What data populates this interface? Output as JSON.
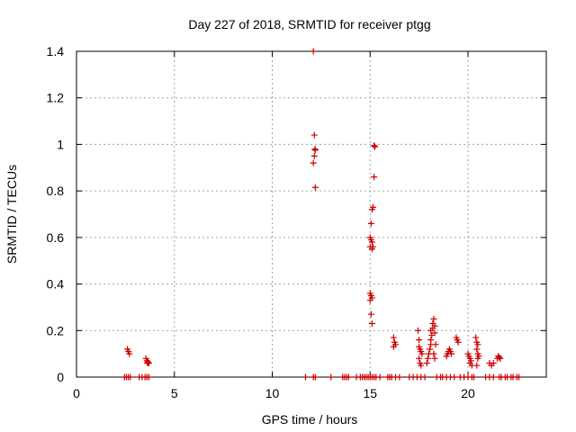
{
  "chart_data": {
    "type": "scatter",
    "title": "Day 227 of 2018, SRMTID for receiver ptgg",
    "xlabel": "GPS time / hours",
    "ylabel": "SRMTID / TECUs",
    "xlim": [
      0,
      24
    ],
    "ylim": [
      0,
      1.4
    ],
    "x_ticks": [
      0,
      5,
      10,
      15,
      20
    ],
    "x_tick_labels": [
      "0",
      "5",
      "10",
      "15",
      "20"
    ],
    "y_ticks": [
      0,
      0.2,
      0.4,
      0.6,
      0.8,
      1,
      1.2,
      1.4
    ],
    "y_tick_labels": [
      "0",
      "0.2",
      "0.4",
      "0.6",
      "0.8",
      "1",
      "1.2",
      "1.4"
    ],
    "grid": true,
    "marker": "+",
    "series": [
      {
        "name": "SRMTID",
        "color": "#cc0000",
        "points": [
          [
            2.45,
            0
          ],
          [
            2.55,
            0
          ],
          [
            2.65,
            0
          ],
          [
            2.75,
            0
          ],
          [
            2.6,
            0.12
          ],
          [
            2.65,
            0.11
          ],
          [
            2.7,
            0.1
          ],
          [
            3.2,
            0
          ],
          [
            3.35,
            0
          ],
          [
            3.5,
            0
          ],
          [
            3.6,
            0
          ],
          [
            3.7,
            0
          ],
          [
            3.55,
            0.08
          ],
          [
            3.6,
            0.07
          ],
          [
            3.62,
            0.06
          ],
          [
            3.65,
            0.065
          ],
          [
            3.7,
            0.06
          ],
          [
            11.7,
            0
          ],
          [
            12.1,
            0
          ],
          [
            12.2,
            0
          ],
          [
            12.1,
            1.4
          ],
          [
            12.15,
            1.04
          ],
          [
            12.18,
            0.98
          ],
          [
            12.2,
            0.975
          ],
          [
            12.15,
            0.95
          ],
          [
            12.1,
            0.92
          ],
          [
            12.2,
            0.815
          ],
          [
            13.0,
            0
          ],
          [
            13.6,
            0
          ],
          [
            13.7,
            0
          ],
          [
            13.8,
            0
          ],
          [
            13.9,
            0
          ],
          [
            14.3,
            0
          ],
          [
            14.5,
            0
          ],
          [
            14.6,
            0
          ],
          [
            14.7,
            0
          ],
          [
            14.8,
            0
          ],
          [
            14.9,
            0
          ],
          [
            15.0,
            0
          ],
          [
            15.1,
            0
          ],
          [
            15.2,
            0
          ],
          [
            15.3,
            0
          ],
          [
            15.5,
            0
          ],
          [
            15.2,
            0.995
          ],
          [
            15.25,
            0.99
          ],
          [
            15.2,
            0.86
          ],
          [
            15.15,
            0.73
          ],
          [
            15.1,
            0.72
          ],
          [
            15.05,
            0.66
          ],
          [
            15.0,
            0.6
          ],
          [
            15.05,
            0.59
          ],
          [
            15.1,
            0.58
          ],
          [
            15.0,
            0.56
          ],
          [
            15.15,
            0.56
          ],
          [
            15.1,
            0.55
          ],
          [
            15.0,
            0.36
          ],
          [
            15.05,
            0.35
          ],
          [
            15.1,
            0.34
          ],
          [
            15.0,
            0.33
          ],
          [
            15.05,
            0.27
          ],
          [
            15.1,
            0.23
          ],
          [
            15.9,
            0
          ],
          [
            16.0,
            0
          ],
          [
            16.1,
            0
          ],
          [
            16.3,
            0
          ],
          [
            16.5,
            0
          ],
          [
            16.2,
            0.17
          ],
          [
            16.25,
            0.15
          ],
          [
            16.3,
            0.14
          ],
          [
            16.2,
            0.13
          ],
          [
            17.0,
            0
          ],
          [
            17.2,
            0
          ],
          [
            17.4,
            0
          ],
          [
            17.6,
            0
          ],
          [
            17.8,
            0
          ],
          [
            17.45,
            0.2
          ],
          [
            17.5,
            0.16
          ],
          [
            17.5,
            0.13
          ],
          [
            17.55,
            0.12
          ],
          [
            17.6,
            0.11
          ],
          [
            17.65,
            0.1
          ],
          [
            17.5,
            0.08
          ],
          [
            17.55,
            0.06
          ],
          [
            17.6,
            0.05
          ],
          [
            17.9,
            0.06
          ],
          [
            17.95,
            0.08
          ],
          [
            18.0,
            0.1
          ],
          [
            18.05,
            0.12
          ],
          [
            18.1,
            0.14
          ],
          [
            18.1,
            0.16
          ],
          [
            18.15,
            0.18
          ],
          [
            18.1,
            0.2
          ],
          [
            18.2,
            0.21
          ],
          [
            18.2,
            0.23
          ],
          [
            18.25,
            0.25
          ],
          [
            18.3,
            0.22
          ],
          [
            18.3,
            0.19
          ],
          [
            18.35,
            0.14
          ],
          [
            18.25,
            0.1
          ],
          [
            18.3,
            0.08
          ],
          [
            18.4,
            0
          ],
          [
            18.6,
            0
          ],
          [
            18.7,
            0
          ],
          [
            18.9,
            0
          ],
          [
            19.1,
            0
          ],
          [
            19.3,
            0
          ],
          [
            18.9,
            0.09
          ],
          [
            18.95,
            0.1
          ],
          [
            19.0,
            0.11
          ],
          [
            19.05,
            0.12
          ],
          [
            19.1,
            0.11
          ],
          [
            19.15,
            0.1
          ],
          [
            19.4,
            0.17
          ],
          [
            19.45,
            0.16
          ],
          [
            19.5,
            0.15
          ],
          [
            19.6,
            0
          ],
          [
            19.8,
            0
          ],
          [
            20.0,
            0
          ],
          [
            20.2,
            0
          ],
          [
            20.3,
            0
          ],
          [
            20.0,
            0.1
          ],
          [
            20.05,
            0.09
          ],
          [
            20.1,
            0.08
          ],
          [
            20.15,
            0.07
          ],
          [
            20.1,
            0.06
          ],
          [
            20.2,
            0.05
          ],
          [
            20.4,
            0.17
          ],
          [
            20.45,
            0.15
          ],
          [
            20.5,
            0.14
          ],
          [
            20.45,
            0.12
          ],
          [
            20.5,
            0.1
          ],
          [
            20.55,
            0.09
          ],
          [
            20.5,
            0.08
          ],
          [
            20.45,
            0.05
          ],
          [
            20.9,
            0
          ],
          [
            21.1,
            0
          ],
          [
            21.3,
            0
          ],
          [
            21.6,
            0
          ],
          [
            21.7,
            0
          ],
          [
            21.1,
            0.06
          ],
          [
            21.2,
            0.05
          ],
          [
            21.3,
            0.06
          ],
          [
            21.5,
            0.08
          ],
          [
            21.55,
            0.09
          ],
          [
            21.6,
            0.085
          ],
          [
            21.65,
            0.08
          ],
          [
            21.9,
            0
          ],
          [
            22.0,
            0
          ],
          [
            22.2,
            0
          ],
          [
            22.3,
            0
          ],
          [
            22.5,
            0
          ],
          [
            22.6,
            0
          ]
        ]
      }
    ]
  }
}
